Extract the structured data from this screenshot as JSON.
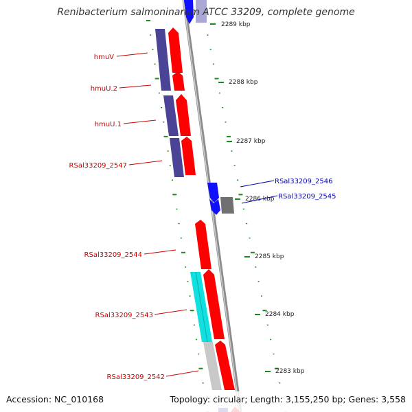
{
  "title": "Renibacterium salmoninarum ATCC 33209, complete genome",
  "footer": {
    "accession": "Accession: NC_010168",
    "summary": "Topology: circular; Length: 3,155,250 bp; Genes: 3,558"
  },
  "colors": {
    "backbone": "#8c8c8c",
    "tick": "#1a8a1a",
    "label_red": "#cc0000",
    "label_blue": "#0000aa",
    "gene_red": "#ff0000",
    "gene_purple": "#4b4496",
    "gene_blue": "#1010ff",
    "gene_cyan": "#11e0e0",
    "gene_gray": "#707070",
    "gene_lightgray": "#c8c8c8"
  },
  "scale_labels": [
    "2289 kbp",
    "2288 kbp",
    "2287 kbp",
    "2286 kbp",
    "2285 kbp",
    "2284 kbp",
    "2283 kbp"
  ],
  "gene_labels": [
    {
      "text": "hmuV",
      "color": "red"
    },
    {
      "text": "hmuU.2",
      "color": "red"
    },
    {
      "text": "hmuU.1",
      "color": "red"
    },
    {
      "text": "RSal33209_2547",
      "color": "red"
    },
    {
      "text": "RSal33209_2546",
      "color": "blue"
    },
    {
      "text": "RSal33209_2545",
      "color": "blue"
    },
    {
      "text": "RSal33209_2544",
      "color": "red"
    },
    {
      "text": "RSal33209_2543",
      "color": "red"
    },
    {
      "text": "RSal33209_2542",
      "color": "red"
    }
  ]
}
